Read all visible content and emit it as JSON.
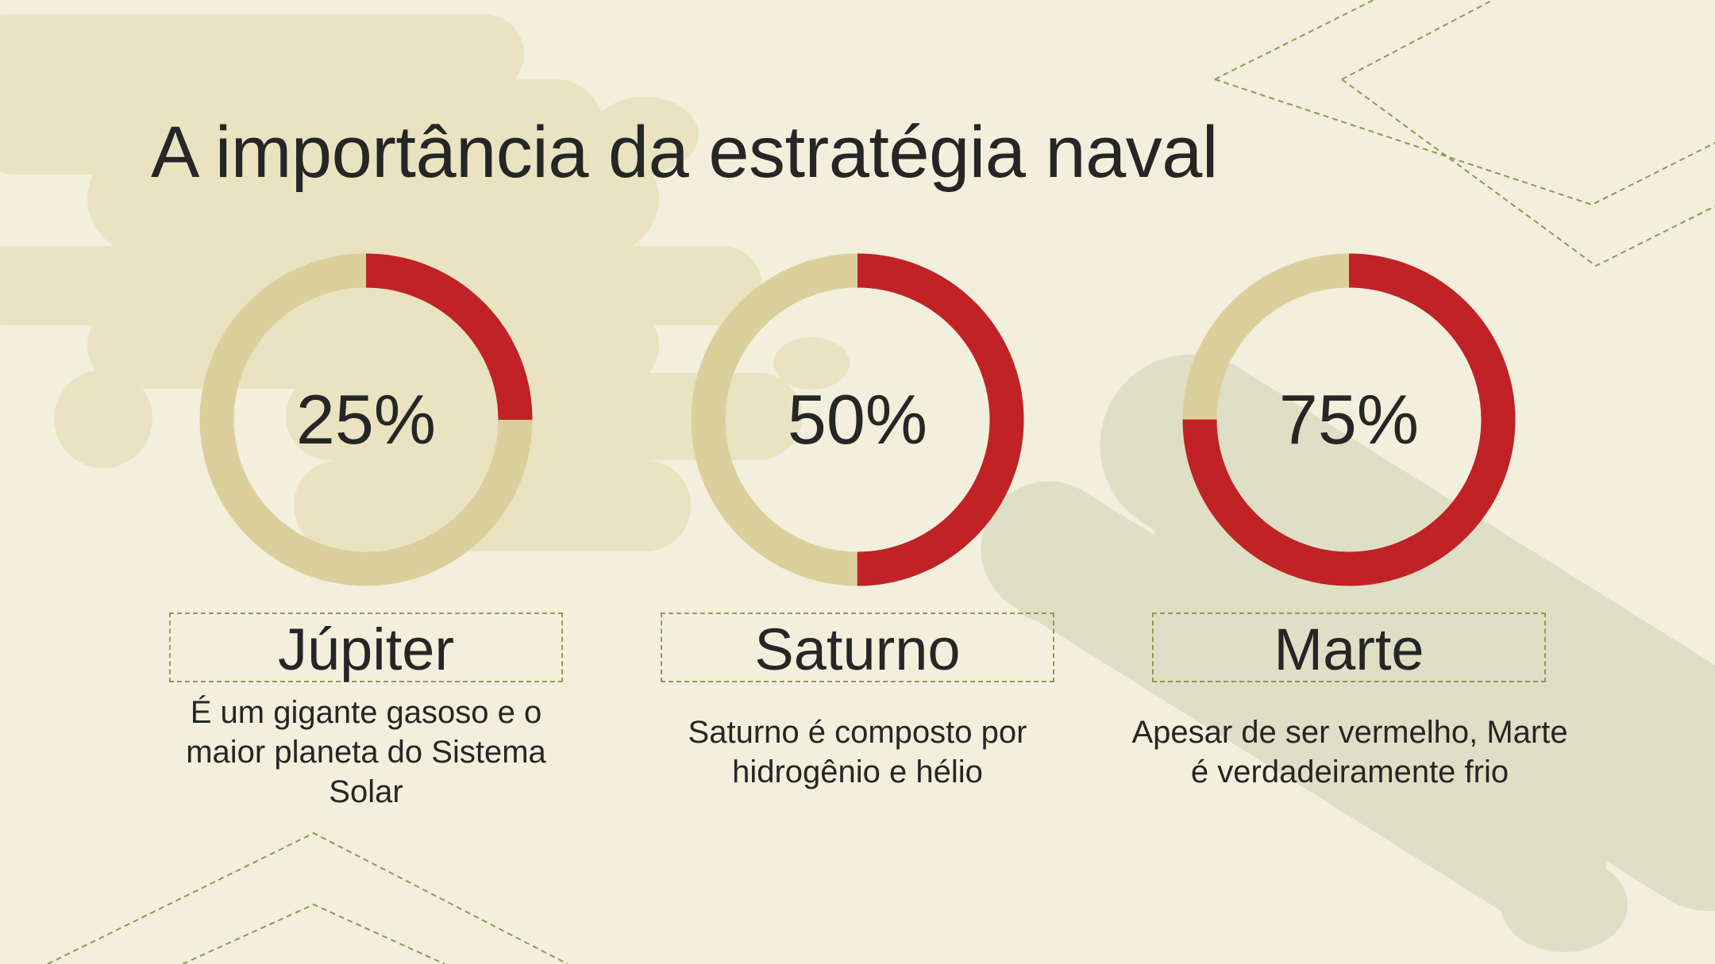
{
  "slide": {
    "title": "A importância da estratégia naval"
  },
  "planets": [
    {
      "name": "Júpiter",
      "percent_label": "25%",
      "description": "É um gigante gasoso e o maior planeta do Sistema Solar"
    },
    {
      "name": "Saturno",
      "percent_label": "50%",
      "description": "Saturno é composto por hidrogênio e hélio"
    },
    {
      "name": "Marte",
      "percent_label": "75%",
      "description": "Apesar de ser vermelho, Marte é verdadeiramente frio"
    }
  ],
  "chart_data": {
    "type": "pie",
    "variant": "donut-progress",
    "categories": [
      "Júpiter",
      "Saturno",
      "Marte"
    ],
    "values": [
      25,
      50,
      75
    ],
    "unit": "%",
    "max": 100
  },
  "colors": {
    "background": "#f2efdd",
    "progress": "#c02226",
    "track": "#dbd09b",
    "text": "#262626",
    "dashed_outline": "#8e9a52",
    "blob_light": "#e9e3c2",
    "blob_green": "#dfdfc6"
  }
}
